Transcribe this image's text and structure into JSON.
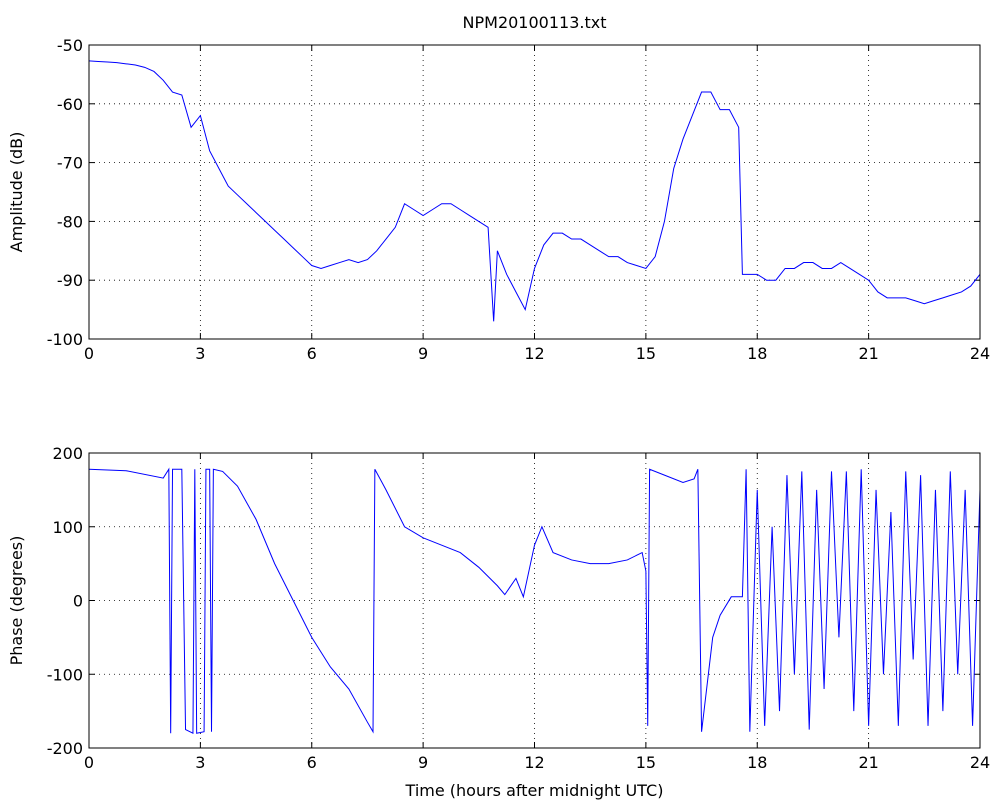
{
  "chart_data": [
    {
      "type": "line",
      "title": "NPM20100113.txt",
      "ylabel": "Amplitude (dB)",
      "x": [
        0,
        0.25,
        0.5,
        0.75,
        1,
        1.25,
        1.5,
        1.75,
        2,
        2.25,
        2.5,
        2.75,
        3,
        3.25,
        3.5,
        3.75,
        4,
        4.25,
        4.5,
        4.75,
        5,
        5.25,
        5.5,
        5.75,
        6,
        6.25,
        6.5,
        6.75,
        7,
        7.25,
        7.5,
        7.75,
        8,
        8.25,
        8.5,
        8.75,
        9,
        9.25,
        9.5,
        9.75,
        10,
        10.25,
        10.5,
        10.75,
        10.9,
        11,
        11.25,
        11.5,
        11.75,
        12,
        12.25,
        12.5,
        12.75,
        13,
        13.25,
        13.5,
        13.75,
        14,
        14.25,
        14.5,
        14.75,
        15,
        15.25,
        15.5,
        15.75,
        16,
        16.25,
        16.5,
        16.75,
        17,
        17.25,
        17.5,
        17.6,
        17.75,
        18,
        18.25,
        18.5,
        18.75,
        19,
        19.25,
        19.5,
        19.75,
        20,
        20.25,
        20.5,
        20.75,
        21,
        21.25,
        21.5,
        21.75,
        22,
        22.25,
        22.5,
        22.75,
        23,
        23.25,
        23.5,
        23.75,
        24
      ],
      "series": [
        {
          "name": "Amplitude",
          "color": "#0000ff",
          "values": [
            -52.7,
            -52.8,
            -52.9,
            -53,
            -53.2,
            -53.4,
            -53.8,
            -54.5,
            -56,
            -58,
            -58.5,
            -64,
            -62,
            -68,
            -71,
            -74,
            -75.5,
            -77,
            -78.5,
            -80,
            -81.5,
            -83,
            -84.5,
            -86,
            -87.5,
            -88,
            -87.5,
            -87,
            -86.5,
            -87,
            -86.5,
            -85,
            -83,
            -81,
            -77,
            -78,
            -79,
            -78,
            -77,
            -77,
            -78,
            -79,
            -80,
            -81,
            -97,
            -85,
            -89,
            -92,
            -95,
            -88,
            -84,
            -82,
            -82,
            -83,
            -83,
            -84,
            -85,
            -86,
            -86,
            -87,
            -87.5,
            -88,
            -86,
            -80,
            -71,
            -66,
            -62,
            -58,
            -58,
            -61,
            -61,
            -64,
            -89,
            -89,
            -89,
            -90,
            -90,
            -88,
            -88,
            -87,
            -87,
            -88,
            -88,
            -87,
            -88,
            -89,
            -90,
            -92,
            -93,
            -93,
            -93,
            -93.5,
            -94,
            -93.5,
            -93,
            -92.5,
            -92,
            -91,
            -89
          ]
        }
      ],
      "xlim": [
        0,
        24
      ],
      "xticks": [
        0,
        3,
        6,
        9,
        12,
        15,
        18,
        21,
        24
      ],
      "ylim": [
        -100,
        -50
      ],
      "yticks": [
        -100,
        -90,
        -80,
        -70,
        -60,
        -50
      ],
      "grid": true
    },
    {
      "type": "line",
      "xlabel": "Time (hours after midnight UTC)",
      "ylabel": "Phase (degrees)",
      "x": [
        0,
        1,
        2,
        2.15,
        2.2,
        2.25,
        2.5,
        2.6,
        2.8,
        2.85,
        2.9,
        3.1,
        3.15,
        3.25,
        3.3,
        3.35,
        3.6,
        4,
        4.5,
        5,
        5.5,
        6,
        6.5,
        7,
        7.5,
        7.65,
        7.7,
        8,
        8.5,
        9,
        9.5,
        10,
        10.5,
        11,
        11.2,
        11.5,
        11.7,
        12,
        12.2,
        12.5,
        13,
        13.5,
        14,
        14.5,
        14.9,
        15,
        15.05,
        15.1,
        15.5,
        16,
        16.3,
        16.4,
        16.5,
        16.8,
        17,
        17.3,
        17.6,
        17.7,
        17.8,
        18,
        18.2,
        18.4,
        18.6,
        18.8,
        19,
        19.2,
        19.4,
        19.6,
        19.8,
        20,
        20.2,
        20.4,
        20.6,
        20.8,
        21,
        21.2,
        21.4,
        21.6,
        21.8,
        22,
        22.2,
        22.4,
        22.6,
        22.8,
        23,
        23.2,
        23.4,
        23.6,
        23.8,
        24
      ],
      "series": [
        {
          "name": "Phase",
          "color": "#0000ff",
          "values": [
            178,
            176,
            166,
            178,
            -180,
            178,
            178,
            -175,
            -180,
            178,
            -180,
            -178,
            178,
            178,
            -178,
            178,
            175,
            155,
            110,
            50,
            0,
            -50,
            -90,
            -120,
            -165,
            -178,
            178,
            150,
            100,
            85,
            75,
            65,
            45,
            20,
            8,
            30,
            5,
            75,
            100,
            65,
            55,
            50,
            50,
            55,
            65,
            40,
            -170,
            178,
            170,
            160,
            165,
            178,
            -178,
            -50,
            -20,
            5,
            5,
            178,
            -178,
            150,
            -170,
            100,
            -150,
            170,
            -100,
            175,
            -175,
            150,
            -120,
            175,
            -50,
            175,
            -150,
            178,
            -170,
            150,
            -100,
            120,
            -170,
            175,
            -80,
            170,
            -170,
            150,
            -150,
            175,
            -100,
            150,
            -170,
            150
          ]
        }
      ],
      "xlim": [
        0,
        24
      ],
      "xticks": [
        0,
        3,
        6,
        9,
        12,
        15,
        18,
        21,
        24
      ],
      "ylim": [
        -200,
        200
      ],
      "yticks": [
        -200,
        -100,
        0,
        100,
        200
      ],
      "grid": true
    }
  ]
}
